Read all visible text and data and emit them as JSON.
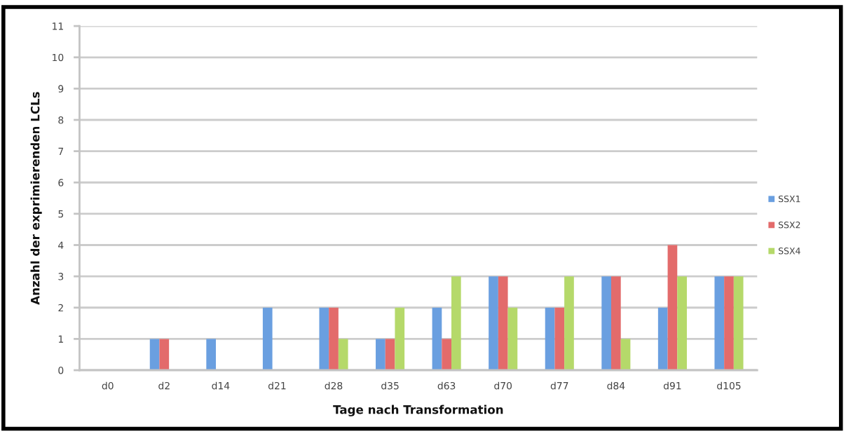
{
  "chart_data": {
    "type": "bar",
    "xlabel": "Tage nach Transformation",
    "ylabel": "Anzahl der exprimierenden LCLs",
    "categories": [
      "d0",
      "d2",
      "d14",
      "d21",
      "d28",
      "d35",
      "d63",
      "d70",
      "d77",
      "d84",
      "d91",
      "d105"
    ],
    "series": [
      {
        "name": "SSX1",
        "color": "#6a9fe0",
        "values": [
          0,
          1,
          1,
          2,
          2,
          1,
          2,
          3,
          2,
          3,
          2,
          3
        ]
      },
      {
        "name": "SSX2",
        "color": "#e36b6b",
        "values": [
          0,
          1,
          0,
          0,
          2,
          1,
          1,
          3,
          2,
          3,
          4,
          3
        ]
      },
      {
        "name": "SSX4",
        "color": "#b5d96a",
        "values": [
          0,
          0,
          0,
          0,
          1,
          2,
          3,
          2,
          3,
          1,
          3,
          3
        ]
      }
    ],
    "ylim": [
      0,
      11
    ],
    "yticks": [
      0,
      1,
      2,
      3,
      4,
      5,
      6,
      7,
      8,
      9,
      10,
      11
    ],
    "grid": "y",
    "legend": "right"
  }
}
